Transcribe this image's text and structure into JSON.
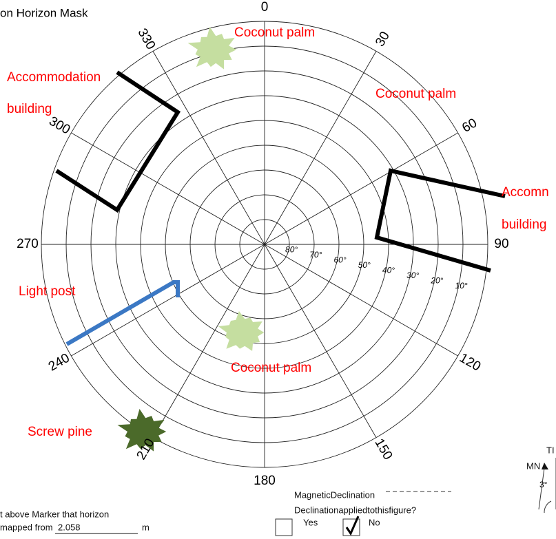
{
  "title": "on Horizon Mask",
  "azimuth_labels": [
    "0",
    "30",
    "60",
    "90",
    "120",
    "150",
    "180",
    "210",
    "240",
    "270",
    "300",
    "330"
  ],
  "elevation_labels": [
    "80°",
    "70°",
    "60°",
    "50°",
    "40°",
    "30°",
    "20°",
    "10°"
  ],
  "annotations": [
    "Coconut palm",
    "Accommodation",
    "building",
    "Coconut palm",
    "Accomn",
    "building",
    "Light post",
    "Coconut palm",
    "Screw pine"
  ],
  "footer": {
    "marker_text": "t above Marker that horizon",
    "mapped_from": "mapped from",
    "height": "2.058",
    "unit": "m",
    "magnetic_declination": "MagneticDeclination",
    "declination_question": "Declinationappliedtothisfigure?",
    "yes": "Yes",
    "no": "No"
  },
  "compass": {
    "true_north": "TI",
    "magnetic_north": "MN",
    "declination": "3°"
  }
}
